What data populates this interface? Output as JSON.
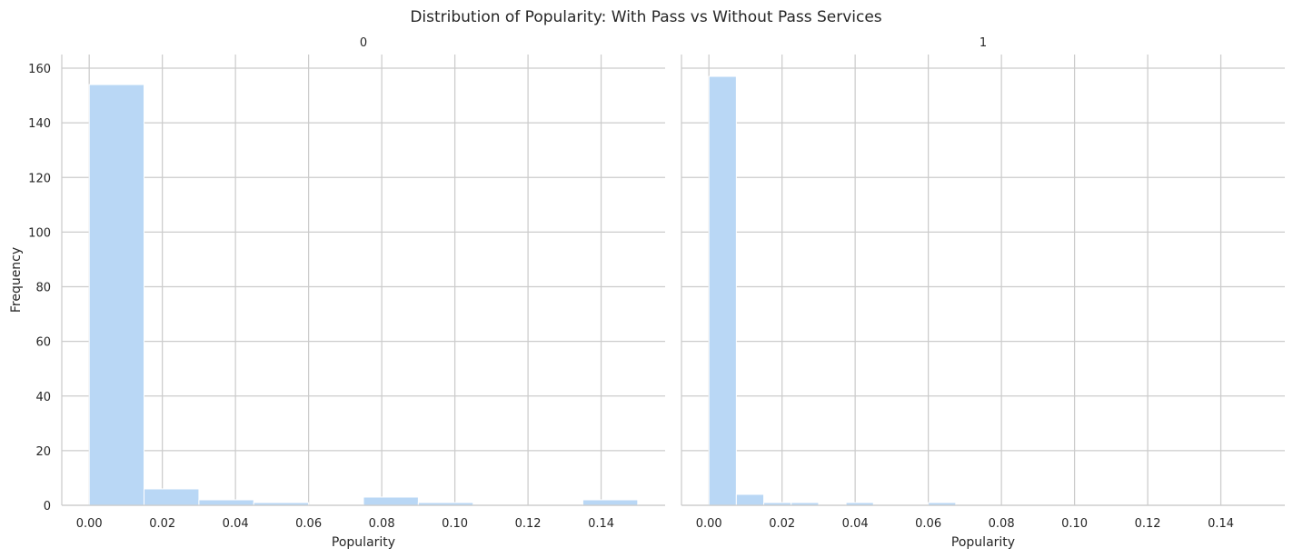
{
  "chart_data": {
    "type": "bar",
    "title": "Distribution of Popularity: With Pass vs Without Pass Services",
    "ylabel": "Frequency",
    "ylim": [
      0,
      165
    ],
    "yticks": [
      0,
      20,
      40,
      60,
      80,
      100,
      120,
      140,
      160
    ],
    "bar_color": "#b9d7f5",
    "grid": true,
    "facets": [
      {
        "title": "0",
        "xlabel": "Popularity",
        "xlim": [
          -0.0075,
          0.1575
        ],
        "xticks": [
          "0.00",
          "0.02",
          "0.04",
          "0.06",
          "0.08",
          "0.10",
          "0.12",
          "0.14"
        ],
        "bins": [
          0,
          0.015,
          0.03,
          0.045,
          0.06,
          0.075,
          0.09,
          0.105,
          0.12,
          0.135,
          0.15
        ],
        "counts": [
          154,
          6,
          2,
          1,
          0,
          3,
          1,
          0,
          0,
          2
        ]
      },
      {
        "title": "1",
        "xlabel": "Popularity",
        "xlim": [
          -0.0075,
          0.1575
        ],
        "xticks": [
          "0.00",
          "0.02",
          "0.04",
          "0.06",
          "0.08",
          "0.10",
          "0.12",
          "0.14"
        ],
        "bins": [
          0,
          0.0075,
          0.015,
          0.0225,
          0.03,
          0.0375,
          0.045,
          0.0525,
          0.06,
          0.0675,
          0.075,
          0.0825,
          0.09,
          0.0975,
          0.105,
          0.1125,
          0.12,
          0.1275,
          0.135,
          0.1425,
          0.15
        ],
        "counts": [
          157,
          4,
          1,
          1,
          0,
          1,
          0,
          0,
          1,
          0,
          0,
          0,
          0,
          0,
          0,
          0,
          0,
          0,
          0,
          0
        ]
      }
    ]
  }
}
